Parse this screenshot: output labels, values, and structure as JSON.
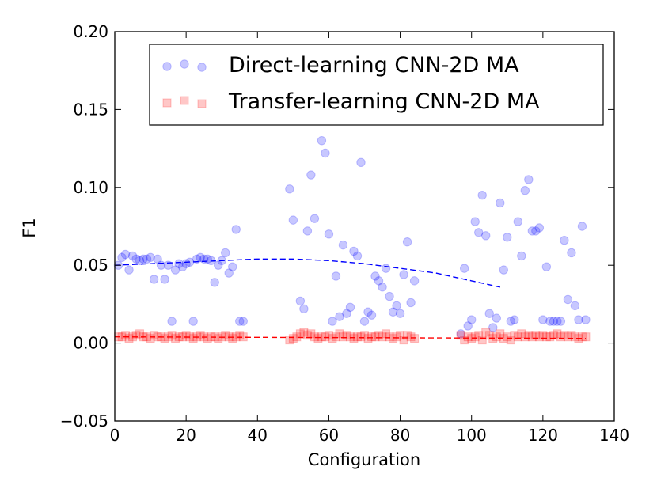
{
  "chart_data": {
    "type": "scatter",
    "title": "",
    "xlabel": "Configuration",
    "ylabel": "F1",
    "xlim": [
      0,
      140
    ],
    "ylim": [
      -0.05,
      0.2
    ],
    "xticks": [
      0,
      20,
      40,
      60,
      80,
      100,
      120,
      140
    ],
    "xtick_labels": [
      "0",
      "20",
      "40",
      "60",
      "80",
      "100",
      "120",
      "140"
    ],
    "yticks": [
      -0.05,
      0.0,
      0.05,
      0.1,
      0.15,
      0.2
    ],
    "ytick_labels": [
      "−0.05",
      "0.00",
      "0.05",
      "0.10",
      "0.15",
      "0.20"
    ],
    "grid": false,
    "legend_position": "top-right",
    "series": [
      {
        "name": "Direct-learning CNN-2D MA",
        "color": "#0000ff",
        "marker": "circle",
        "points": [
          [
            1,
            0.05
          ],
          [
            2,
            0.055
          ],
          [
            3,
            0.057
          ],
          [
            4,
            0.047
          ],
          [
            5,
            0.056
          ],
          [
            6,
            0.054
          ],
          [
            7,
            0.053
          ],
          [
            8,
            0.054
          ],
          [
            9,
            0.054
          ],
          [
            10,
            0.055
          ],
          [
            11,
            0.041
          ],
          [
            12,
            0.054
          ],
          [
            13,
            0.05
          ],
          [
            14,
            0.041
          ],
          [
            15,
            0.05
          ],
          [
            16,
            0.014
          ],
          [
            17,
            0.047
          ],
          [
            18,
            0.051
          ],
          [
            19,
            0.049
          ],
          [
            20,
            0.051
          ],
          [
            21,
            0.052
          ],
          [
            22,
            0.014
          ],
          [
            23,
            0.054
          ],
          [
            24,
            0.055
          ],
          [
            25,
            0.054
          ],
          [
            26,
            0.054
          ],
          [
            27,
            0.053
          ],
          [
            28,
            0.039
          ],
          [
            29,
            0.05
          ],
          [
            30,
            0.053
          ],
          [
            31,
            0.058
          ],
          [
            32,
            0.045
          ],
          [
            33,
            0.049
          ],
          [
            34,
            0.073
          ],
          [
            35,
            0.014
          ],
          [
            36,
            0.014
          ],
          [
            49,
            0.099
          ],
          [
            50,
            0.079
          ],
          [
            52,
            0.027
          ],
          [
            53,
            0.022
          ],
          [
            54,
            0.072
          ],
          [
            55,
            0.108
          ],
          [
            56,
            0.08
          ],
          [
            58,
            0.13
          ],
          [
            59,
            0.122
          ],
          [
            60,
            0.07
          ],
          [
            61,
            0.014
          ],
          [
            62,
            0.043
          ],
          [
            63,
            0.017
          ],
          [
            64,
            0.063
          ],
          [
            65,
            0.019
          ],
          [
            66,
            0.023
          ],
          [
            67,
            0.059
          ],
          [
            68,
            0.056
          ],
          [
            69,
            0.116
          ],
          [
            70,
            0.014
          ],
          [
            71,
            0.02
          ],
          [
            72,
            0.018
          ],
          [
            73,
            0.043
          ],
          [
            74,
            0.04
          ],
          [
            75,
            0.036
          ],
          [
            76,
            0.048
          ],
          [
            77,
            0.03
          ],
          [
            78,
            0.02
          ],
          [
            79,
            0.024
          ],
          [
            80,
            0.019
          ],
          [
            81,
            0.044
          ],
          [
            82,
            0.065
          ],
          [
            83,
            0.026
          ],
          [
            84,
            0.04
          ],
          [
            97,
            0.006
          ],
          [
            98,
            0.048
          ],
          [
            99,
            0.011
          ],
          [
            100,
            0.015
          ],
          [
            101,
            0.078
          ],
          [
            102,
            0.071
          ],
          [
            103,
            0.095
          ],
          [
            104,
            0.069
          ],
          [
            105,
            0.019
          ],
          [
            106,
            0.01
          ],
          [
            107,
            0.016
          ],
          [
            108,
            0.09
          ],
          [
            109,
            0.047
          ],
          [
            110,
            0.068
          ],
          [
            111,
            0.014
          ],
          [
            112,
            0.015
          ],
          [
            113,
            0.078
          ],
          [
            114,
            0.056
          ],
          [
            115,
            0.098
          ],
          [
            116,
            0.105
          ],
          [
            117,
            0.072
          ],
          [
            118,
            0.072
          ],
          [
            119,
            0.074
          ],
          [
            120,
            0.015
          ],
          [
            121,
            0.049
          ],
          [
            122,
            0.014
          ],
          [
            123,
            0.014
          ],
          [
            124,
            0.014
          ],
          [
            125,
            0.014
          ],
          [
            126,
            0.066
          ],
          [
            127,
            0.028
          ],
          [
            128,
            0.058
          ],
          [
            129,
            0.024
          ],
          [
            130,
            0.015
          ],
          [
            131,
            0.075
          ],
          [
            132,
            0.015
          ]
        ]
      },
      {
        "name": "Transfer-learning CNN-2D MA",
        "color": "#ff0000",
        "marker": "square",
        "points": [
          [
            1,
            0.004
          ],
          [
            2,
            0.004
          ],
          [
            3,
            0.005
          ],
          [
            4,
            0.003
          ],
          [
            5,
            0.004
          ],
          [
            6,
            0.005
          ],
          [
            7,
            0.006
          ],
          [
            8,
            0.004
          ],
          [
            9,
            0.004
          ],
          [
            10,
            0.003
          ],
          [
            11,
            0.005
          ],
          [
            12,
            0.004
          ],
          [
            13,
            0.004
          ],
          [
            14,
            0.003
          ],
          [
            15,
            0.004
          ],
          [
            16,
            0.005
          ],
          [
            17,
            0.003
          ],
          [
            18,
            0.004
          ],
          [
            19,
            0.004
          ],
          [
            20,
            0.005
          ],
          [
            21,
            0.004
          ],
          [
            22,
            0.003
          ],
          [
            23,
            0.004
          ],
          [
            24,
            0.005
          ],
          [
            25,
            0.004
          ],
          [
            26,
            0.003
          ],
          [
            27,
            0.004
          ],
          [
            28,
            0.004
          ],
          [
            29,
            0.003
          ],
          [
            30,
            0.004
          ],
          [
            31,
            0.005
          ],
          [
            32,
            0.004
          ],
          [
            33,
            0.003
          ],
          [
            34,
            0.004
          ],
          [
            35,
            0.005
          ],
          [
            36,
            0.004
          ],
          [
            49,
            0.002
          ],
          [
            50,
            0.003
          ],
          [
            51,
            0.004
          ],
          [
            52,
            0.006
          ],
          [
            53,
            0.007
          ],
          [
            54,
            0.005
          ],
          [
            55,
            0.006
          ],
          [
            56,
            0.004
          ],
          [
            57,
            0.003
          ],
          [
            58,
            0.004
          ],
          [
            59,
            0.004
          ],
          [
            60,
            0.005
          ],
          [
            61,
            0.003
          ],
          [
            62,
            0.004
          ],
          [
            63,
            0.006
          ],
          [
            64,
            0.004
          ],
          [
            65,
            0.005
          ],
          [
            66,
            0.004
          ],
          [
            67,
            0.003
          ],
          [
            68,
            0.004
          ],
          [
            69,
            0.004
          ],
          [
            70,
            0.005
          ],
          [
            71,
            0.003
          ],
          [
            72,
            0.004
          ],
          [
            73,
            0.004
          ],
          [
            74,
            0.005
          ],
          [
            75,
            0.004
          ],
          [
            76,
            0.006
          ],
          [
            77,
            0.004
          ],
          [
            78,
            0.003
          ],
          [
            79,
            0.004
          ],
          [
            80,
            0.005
          ],
          [
            81,
            0.002
          ],
          [
            82,
            0.005
          ],
          [
            83,
            0.004
          ],
          [
            84,
            0.003
          ],
          [
            97,
            0.005
          ],
          [
            98,
            0.002
          ],
          [
            99,
            0.004
          ],
          [
            100,
            0.003
          ],
          [
            101,
            0.004
          ],
          [
            102,
            0.005
          ],
          [
            103,
            0.002
          ],
          [
            104,
            0.007
          ],
          [
            105,
            0.005
          ],
          [
            106,
            0.003
          ],
          [
            107,
            0.004
          ],
          [
            108,
            0.006
          ],
          [
            109,
            0.003
          ],
          [
            110,
            0.004
          ],
          [
            111,
            0.002
          ],
          [
            112,
            0.005
          ],
          [
            113,
            0.004
          ],
          [
            114,
            0.006
          ],
          [
            115,
            0.004
          ],
          [
            116,
            0.005
          ],
          [
            117,
            0.004
          ],
          [
            118,
            0.005
          ],
          [
            119,
            0.004
          ],
          [
            120,
            0.005
          ],
          [
            121,
            0.004
          ],
          [
            122,
            0.004
          ],
          [
            123,
            0.005
          ],
          [
            124,
            0.006
          ],
          [
            125,
            0.004
          ],
          [
            126,
            0.005
          ],
          [
            127,
            0.004
          ],
          [
            128,
            0.005
          ],
          [
            129,
            0.004
          ],
          [
            130,
            0.003
          ],
          [
            131,
            0.004
          ],
          [
            132,
            0.004
          ]
        ]
      }
    ],
    "fits": [
      {
        "series": "Direct-learning CNN-2D MA",
        "color": "#0000ff",
        "style": "dashed",
        "points": [
          [
            0,
            0.05
          ],
          [
            20,
            0.052
          ],
          [
            40,
            0.054
          ],
          [
            50,
            0.054
          ],
          [
            60,
            0.053
          ],
          [
            70,
            0.051
          ],
          [
            80,
            0.048
          ],
          [
            90,
            0.045
          ],
          [
            100,
            0.04
          ],
          [
            108,
            0.036
          ]
        ]
      },
      {
        "series": "Transfer-learning CNN-2D MA",
        "color": "#ff0000",
        "style": "dashed",
        "points": [
          [
            0,
            0.004
          ],
          [
            132,
            0.003
          ]
        ]
      }
    ]
  }
}
